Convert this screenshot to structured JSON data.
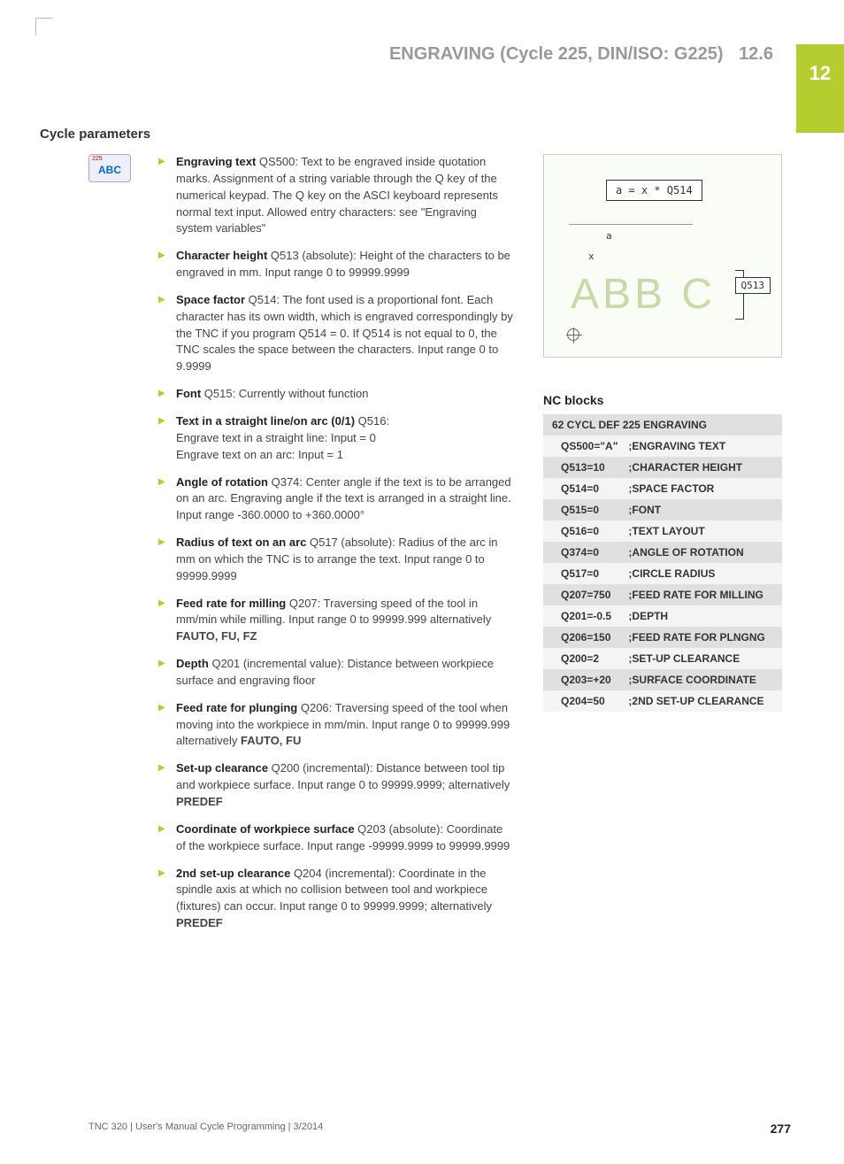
{
  "chapter_number": "12",
  "header_title": "ENGRAVING (Cycle 225, DIN/ISO: G225)",
  "header_section": "12.6",
  "section_title": "Cycle parameters",
  "softkey": {
    "num": "225",
    "label": "ABC"
  },
  "parameters": [
    {
      "name": "Engraving text",
      "code": "QS500",
      "desc": ": Text to be engraved inside quotation marks. Assignment of a string variable through the Q key of the numerical keypad. The Q key on the ASCI keyboard represents normal text input. Allowed entry characters: see \"Engraving system variables\""
    },
    {
      "name": "Character height",
      "code": "Q513 (absolute)",
      "desc": ": Height of the characters to be engraved in mm. Input range 0 to 99999.9999"
    },
    {
      "name": "Space factor",
      "code": "Q514",
      "desc": ": The font used is a proportional font. Each character has its own width, which is engraved correspondingly by the TNC if you program Q514 = 0. If Q514 is not equal to 0, the TNC scales the space between the characters. Input range 0 to 9.9999"
    },
    {
      "name": "Font",
      "code": "Q515",
      "desc": ": Currently without function"
    },
    {
      "name": "Text in a straight line/on arc (0/1)",
      "code": "Q516",
      "desc": ":\nEngrave text in a straight line: Input = 0\nEngrave text on an arc: Input = 1"
    },
    {
      "name": "Angle of rotation",
      "code": "Q374",
      "desc": ": Center angle if the text is to be arranged on an arc. Engraving angle if the text is arranged in a straight line. Input range -360.0000 to +360.0000°"
    },
    {
      "name": "Radius of text on an arc",
      "code": "Q517 (absolute)",
      "desc": ": Radius of the arc in mm on which the TNC is to arrange the text. Input range 0 to 99999.9999"
    },
    {
      "name": "Feed rate for milling",
      "code": "Q207",
      "desc": ": Traversing speed of the tool in mm/min while milling. Input range 0 to 99999.999 alternatively ",
      "suffix_bold": "FAUTO, FU, FZ"
    },
    {
      "name": "Depth",
      "code": "Q201 (incremental value)",
      "desc": ": Distance between workpiece surface and engraving floor"
    },
    {
      "name": "Feed rate for plunging",
      "code": "Q206",
      "desc": ": Traversing speed of the tool when moving into the workpiece in mm/min. Input range 0 to 99999.999 alternatively ",
      "suffix_bold": "FAUTO, FU"
    },
    {
      "name": "Set-up clearance",
      "code": "Q200 (incremental)",
      "desc": ": Distance between tool tip and workpiece surface. Input range 0 to 99999.9999; alternatively ",
      "suffix_bold": "PREDEF"
    },
    {
      "name": "Coordinate of workpiece surface",
      "code": "Q203 (absolute)",
      "desc": ": Coordinate of the workpiece surface. Input range -99999.9999 to 99999.9999"
    },
    {
      "name": "2nd set-up clearance",
      "code": "Q204 (incremental)",
      "desc": ": Coordinate in the spindle axis at which no collision between tool and workpiece (fixtures) can occur. Input range 0 to 99999.9999; alternatively ",
      "suffix_bold": "PREDEF"
    }
  ],
  "diagram": {
    "formula": "a = x * Q514",
    "label_a": "a",
    "label_x": "x",
    "letters": "ABB C",
    "q_label": "Q513"
  },
  "nc_title": "NC blocks",
  "nc_rows": [
    {
      "head": "62 CYCL DEF 225 ENGRAVING"
    },
    {
      "param": "QS500=\"A\"",
      "label": ";ENGRAVING TEXT"
    },
    {
      "param": "Q513=10",
      "label": ";CHARACTER HEIGHT"
    },
    {
      "param": "Q514=0",
      "label": ";SPACE FACTOR"
    },
    {
      "param": "Q515=0",
      "label": ";FONT"
    },
    {
      "param": "Q516=0",
      "label": ";TEXT LAYOUT"
    },
    {
      "param": "Q374=0",
      "label": ";ANGLE OF ROTATION"
    },
    {
      "param": "Q517=0",
      "label": ";CIRCLE RADIUS"
    },
    {
      "param": "Q207=750",
      "label": ";FEED RATE FOR MILLING"
    },
    {
      "param": "Q201=-0.5",
      "label": ";DEPTH"
    },
    {
      "param": "Q206=150",
      "label": ";FEED RATE FOR PLNGNG"
    },
    {
      "param": "Q200=2",
      "label": ";SET-UP CLEARANCE"
    },
    {
      "param": "Q203=+20",
      "label": ";SURFACE COORDINATE"
    },
    {
      "param": "Q204=50",
      "label": ";2ND SET-UP CLEARANCE"
    }
  ],
  "footer_left": "TNC 320 | User's Manual Cycle Programming | 3/2014",
  "page_number": "277"
}
